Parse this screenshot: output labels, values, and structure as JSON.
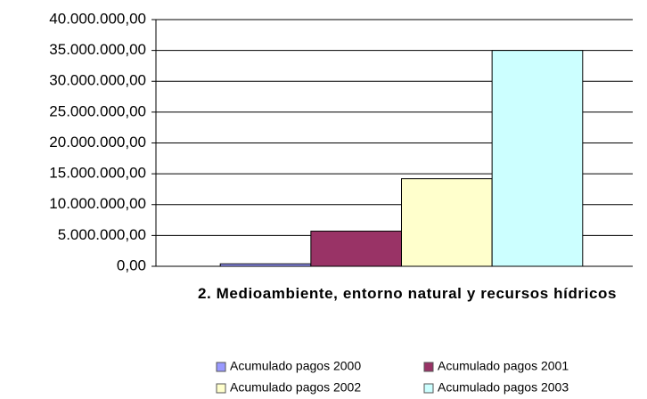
{
  "chart_data": {
    "type": "bar",
    "categories": [
      "2. Medioambiente, entorno natural y recursos hídricos"
    ],
    "series": [
      {
        "name": "Acumulado pagos 2000",
        "color": "#9999ff",
        "values": [
          400000
        ]
      },
      {
        "name": "Acumulado pagos 2001",
        "color": "#993366",
        "values": [
          5700000
        ]
      },
      {
        "name": "Acumulado pagos 2002",
        "color": "#ffffcc",
        "values": [
          14200000
        ]
      },
      {
        "name": "Acumulado pagos 2003",
        "color": "#ccffff",
        "values": [
          35000000
        ]
      }
    ],
    "ylim": [
      0,
      40000000
    ],
    "yticks": [
      {
        "value": 0,
        "label": "0,00"
      },
      {
        "value": 5000000,
        "label": "5.000.000,00"
      },
      {
        "value": 10000000,
        "label": "10.000.000,00"
      },
      {
        "value": 15000000,
        "label": "15.000.000,00"
      },
      {
        "value": 20000000,
        "label": "20.000.000,00"
      },
      {
        "value": 25000000,
        "label": "25.000.000,00"
      },
      {
        "value": 30000000,
        "label": "30.000.000,00"
      },
      {
        "value": 35000000,
        "label": "35.000.000,00"
      },
      {
        "value": 40000000,
        "label": "40.000.000,00"
      }
    ],
    "grid": true
  }
}
